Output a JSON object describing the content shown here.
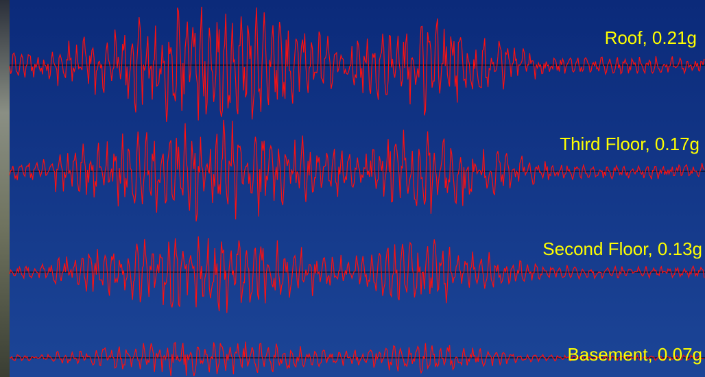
{
  "traces": [
    {
      "label": "Roof, 0.21g"
    },
    {
      "label": "Third Floor, 0.17g"
    },
    {
      "label": "Second Floor, 0.13g"
    },
    {
      "label": "Basement, 0.07g"
    }
  ]
}
